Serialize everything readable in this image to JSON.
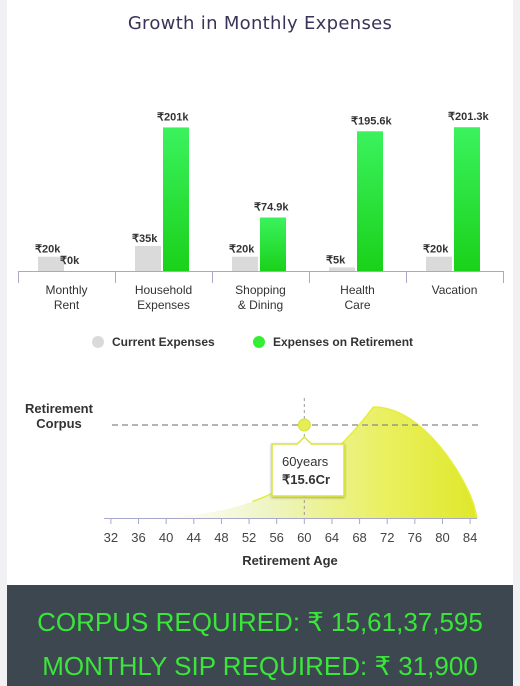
{
  "title": "Growth in Monthly Expenses",
  "colors": {
    "current": "#dadada",
    "retirement": "#22dd22",
    "curve": "#e6ee3c",
    "footer_bg": "#3d4750",
    "footer_text": "#39e639"
  },
  "chart_data": [
    {
      "type": "bar",
      "title": "Growth in Monthly Expenses",
      "categories": [
        [
          "Monthly",
          "Rent"
        ],
        [
          "Household",
          "Expenses"
        ],
        [
          "Shopping",
          "& Dining"
        ],
        [
          "Health",
          "Care"
        ],
        [
          "Vacation"
        ]
      ],
      "series": [
        {
          "name": "Current Expenses",
          "values": [
            20,
            35,
            20,
            5,
            20
          ],
          "labels": [
            "₹20k",
            "₹35k",
            "₹20k",
            "₹5k",
            "₹20k"
          ]
        },
        {
          "name": "Expenses on Retirement",
          "values": [
            0,
            201,
            74.9,
            195.6,
            201.3
          ],
          "labels": [
            "₹0k",
            "₹201k",
            "₹74.9k",
            "₹195.6k",
            "₹201.3k"
          ]
        }
      ],
      "legend": [
        "Current Expenses",
        "Expenses on Retirement"
      ],
      "legend_position": "bottom",
      "ylim": [
        0,
        210
      ]
    },
    {
      "type": "area",
      "ylabel": [
        "Retirement",
        "Corpus"
      ],
      "xlabel": "Retirement Age",
      "x_ticks": [
        32,
        36,
        40,
        44,
        48,
        52,
        56,
        60,
        64,
        68,
        72,
        76,
        80,
        84
      ],
      "xlim": [
        31,
        85
      ],
      "peak_age": 70,
      "end_age": 85,
      "marker": {
        "age": 60,
        "label": "60years",
        "value": "₹15.6Cr"
      }
    }
  ],
  "footer": {
    "corpus": "CORPUS REQUIRED: ₹ 15,61,37,595",
    "sip": "MONTHLY SIP REQUIRED: ₹ 31,900"
  }
}
